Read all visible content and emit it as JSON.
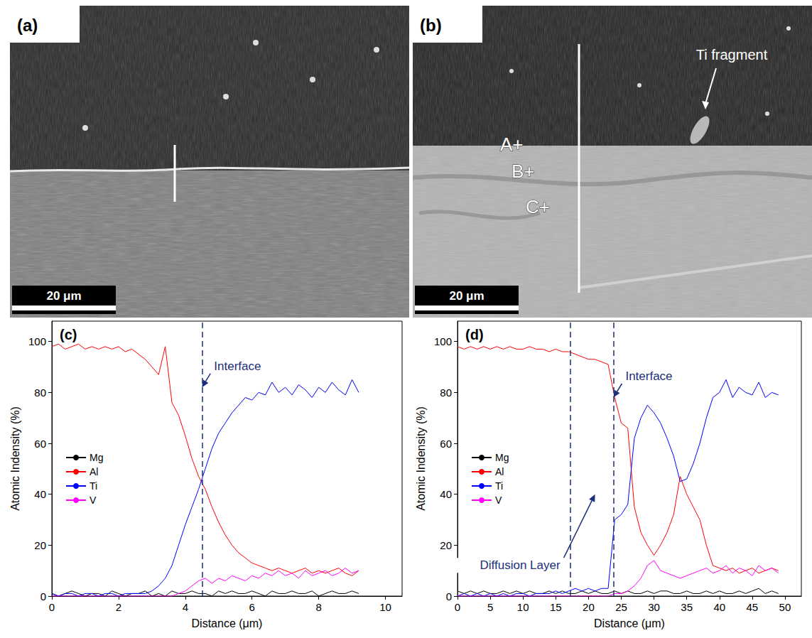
{
  "micrographs": [
    {
      "label": "(a)",
      "scale_bar": "20 μm"
    },
    {
      "label": "(b)",
      "scale_bar": "20 μm",
      "annotations": [
        "Ti fragment"
      ],
      "points": [
        "A+",
        "B+",
        "C+"
      ]
    }
  ],
  "chart_data": [
    {
      "type": "line",
      "title": "(c)",
      "x_label": "Distance (μm)",
      "y_label": "Atomic Indensity (%)",
      "xlim": [
        0,
        10.5
      ],
      "xticks": [
        0,
        2,
        4,
        6,
        8,
        10
      ],
      "ylim": [
        0,
        108
      ],
      "yticks": [
        0,
        20,
        40,
        60,
        80,
        100
      ],
      "grid": false,
      "legend": "left",
      "x": [
        0,
        0.2,
        0.4,
        0.6,
        0.8,
        1,
        1.2,
        1.4,
        1.6,
        1.8,
        2,
        2.2,
        2.4,
        2.6,
        2.8,
        3,
        3.2,
        3.4,
        3.6,
        3.8,
        4,
        4.2,
        4.4,
        4.6,
        4.8,
        5,
        5.2,
        5.4,
        5.6,
        5.8,
        6,
        6.2,
        6.4,
        6.6,
        6.8,
        7,
        7.2,
        7.4,
        7.6,
        7.8,
        8,
        8.2,
        8.4,
        8.6,
        8.8,
        9,
        9.2
      ],
      "series": [
        {
          "name": "Mg",
          "color": "#000000",
          "values": [
            1,
            0,
            1,
            2,
            1,
            0,
            1,
            1,
            0,
            2,
            1,
            0,
            1,
            1,
            2,
            0,
            1,
            0,
            2,
            1,
            1,
            2,
            1,
            1,
            0,
            2,
            1,
            2,
            1,
            1,
            2,
            1,
            0,
            2,
            1,
            1,
            2,
            1,
            1,
            2,
            0,
            1,
            2,
            1,
            1,
            2,
            1
          ]
        },
        {
          "name": "Al",
          "color": "#ff0000",
          "values": [
            98,
            99,
            97,
            98,
            99,
            97,
            98,
            97,
            98,
            97,
            98,
            96,
            97,
            95,
            93,
            90,
            87,
            98,
            76,
            71,
            63,
            54,
            47,
            42,
            35,
            29,
            24,
            20,
            17,
            15,
            13,
            12,
            11,
            10,
            11,
            10,
            9,
            10,
            11,
            9,
            10,
            9,
            10,
            11,
            9,
            8,
            10
          ]
        },
        {
          "name": "Ti",
          "color": "#0000ff",
          "values": [
            1,
            0,
            1,
            1,
            0,
            1,
            1,
            0,
            1,
            1,
            0,
            1,
            1,
            1,
            1,
            2,
            4,
            7,
            12,
            20,
            28,
            35,
            42,
            50,
            58,
            64,
            68,
            72,
            75,
            78,
            77,
            80,
            79,
            84,
            80,
            82,
            79,
            83,
            81,
            78,
            82,
            80,
            84,
            81,
            79,
            85,
            80
          ]
        },
        {
          "name": "V",
          "color": "#ff00ff",
          "values": [
            0,
            0,
            0,
            0,
            0,
            0,
            0,
            0,
            0,
            0,
            0,
            0,
            0,
            0,
            0,
            0,
            0,
            0,
            0,
            1,
            2,
            4,
            6,
            7,
            5,
            7,
            6,
            8,
            7,
            6,
            8,
            7,
            9,
            8,
            10,
            8,
            9,
            7,
            10,
            8,
            9,
            10,
            8,
            9,
            11,
            9,
            10
          ]
        }
      ],
      "reference_lines": [
        {
          "x": 4.5,
          "line_style": "dashed"
        }
      ],
      "annotations": [
        {
          "text": "Interface",
          "x": 4.5,
          "y": 82
        }
      ]
    },
    {
      "type": "line",
      "title": "(d)",
      "x_label": "Distance (μm)",
      "y_label": "Atomic Indensity (%)",
      "xlim": [
        0,
        52.5
      ],
      "xticks": [
        0,
        5,
        10,
        15,
        20,
        25,
        30,
        35,
        40,
        45,
        50
      ],
      "ylim": [
        0,
        108
      ],
      "yticks": [
        0,
        20,
        40,
        60,
        80,
        100
      ],
      "grid": false,
      "legend": "left",
      "x": [
        0,
        1,
        2,
        3,
        4,
        5,
        6,
        7,
        8,
        9,
        10,
        11,
        12,
        13,
        14,
        15,
        16,
        17,
        18,
        19,
        20,
        21,
        22,
        23,
        24,
        25,
        26,
        27,
        28,
        29,
        30,
        31,
        32,
        33,
        34,
        35,
        36,
        37,
        38,
        39,
        40,
        41,
        42,
        43,
        44,
        45,
        46,
        47,
        48,
        49
      ],
      "series": [
        {
          "name": "Mg",
          "color": "#000000",
          "values": [
            2,
            1,
            2,
            1,
            2,
            1,
            1,
            2,
            1,
            2,
            1,
            2,
            1,
            1,
            2,
            1,
            2,
            1,
            1,
            2,
            1,
            2,
            1,
            1,
            2,
            1,
            2,
            1,
            1,
            2,
            1,
            2,
            2,
            1,
            1,
            2,
            1,
            1,
            2,
            1,
            2,
            1,
            1,
            2,
            1,
            2,
            3,
            1,
            2,
            1
          ]
        },
        {
          "name": "Al",
          "color": "#ff0000",
          "values": [
            98,
            97,
            98,
            97,
            98,
            97,
            98,
            97,
            98,
            97,
            97,
            98,
            97,
            97,
            96,
            97,
            96,
            96,
            95,
            94,
            93,
            93,
            92,
            91,
            78,
            68,
            66,
            35,
            25,
            20,
            16,
            20,
            25,
            32,
            47,
            40,
            35,
            30,
            20,
            12,
            11,
            10,
            11,
            9,
            10,
            11,
            9,
            10,
            11,
            10
          ]
        },
        {
          "name": "Ti",
          "color": "#0000ff",
          "values": [
            0,
            1,
            0,
            1,
            0,
            1,
            0,
            1,
            0,
            1,
            1,
            0,
            1,
            1,
            1,
            2,
            1,
            2,
            3,
            2,
            3,
            2,
            3,
            3,
            30,
            32,
            36,
            62,
            70,
            75,
            72,
            68,
            62,
            55,
            45,
            46,
            52,
            60,
            70,
            78,
            80,
            85,
            78,
            82,
            80,
            79,
            84,
            78,
            80,
            79
          ]
        },
        {
          "name": "V",
          "color": "#ff00ff",
          "values": [
            0,
            0,
            0,
            0,
            0,
            0,
            0,
            0,
            0,
            0,
            0,
            0,
            0,
            0,
            0,
            0,
            0,
            0,
            0,
            0,
            0,
            0,
            0,
            0,
            1,
            1,
            2,
            4,
            7,
            12,
            14,
            10,
            9,
            8,
            7,
            8,
            9,
            10,
            11,
            9,
            10,
            12,
            9,
            11,
            10,
            8,
            12,
            10,
            11,
            9
          ]
        }
      ],
      "reference_lines": [
        {
          "x": 17.2,
          "line_style": "dashed"
        },
        {
          "x": 23.8,
          "line_style": "dashed"
        }
      ],
      "annotations": [
        {
          "text": "Interface",
          "x": 23.8,
          "y": 78
        },
        {
          "text": "Diffusion Layer",
          "x": 21,
          "y": 40
        }
      ]
    }
  ]
}
